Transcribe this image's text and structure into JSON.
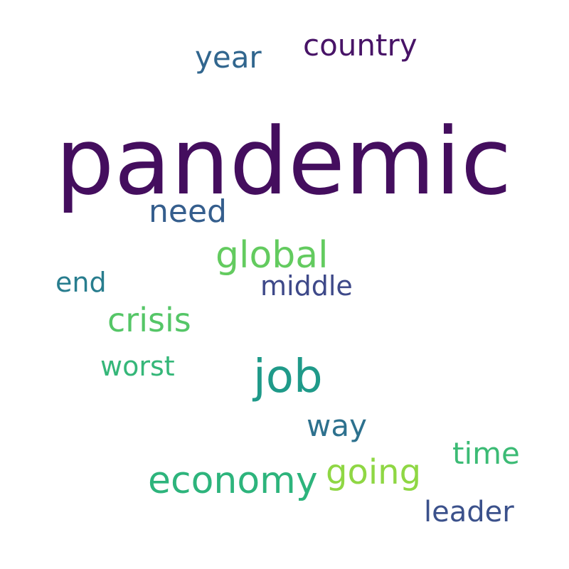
{
  "words": {
    "pandemic": {
      "text": "pandemic",
      "color": "#440e5e"
    },
    "job": {
      "text": "job",
      "color": "#1f9a89"
    },
    "economy": {
      "text": "economy",
      "color": "#2db47c"
    },
    "global": {
      "text": "global",
      "color": "#63cb5f"
    },
    "going": {
      "text": "going",
      "color": "#8fd744"
    },
    "crisis": {
      "text": "crisis",
      "color": "#55c667"
    },
    "need": {
      "text": "need",
      "color": "#355e8d"
    },
    "country": {
      "text": "country",
      "color": "#481467"
    },
    "year": {
      "text": "year",
      "color": "#31668e"
    },
    "way": {
      "text": "way",
      "color": "#2d718e"
    },
    "time": {
      "text": "time",
      "color": "#3cbb75"
    },
    "leader": {
      "text": "leader",
      "color": "#3b518b"
    },
    "middle": {
      "text": "middle",
      "color": "#3e4989"
    },
    "worst": {
      "text": "worst",
      "color": "#35b779"
    },
    "end": {
      "text": "end",
      "color": "#287d8e"
    }
  }
}
